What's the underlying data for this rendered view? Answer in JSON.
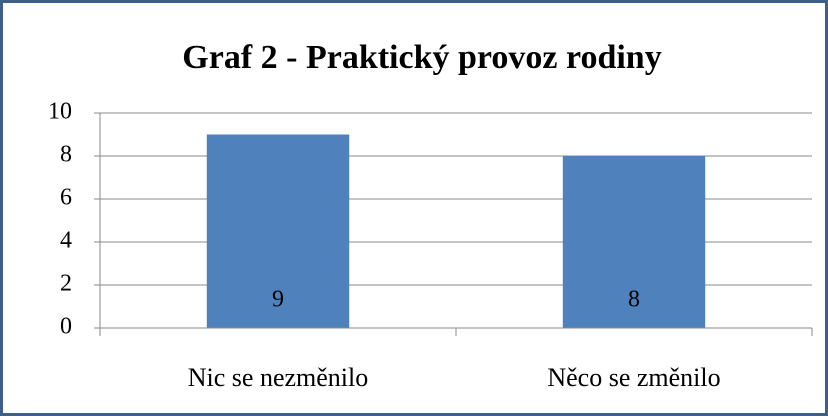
{
  "chart_data": {
    "type": "bar",
    "title": "Graf 2 - Praktický provoz rodiny",
    "categories": [
      "Nic se nezměnilo",
      "Něco se změnilo"
    ],
    "values": [
      9,
      8
    ],
    "color": "#4f81bd",
    "ylim": [
      0,
      10
    ],
    "yticks": [
      0,
      2,
      4,
      6,
      8,
      10
    ],
    "grid": true
  }
}
